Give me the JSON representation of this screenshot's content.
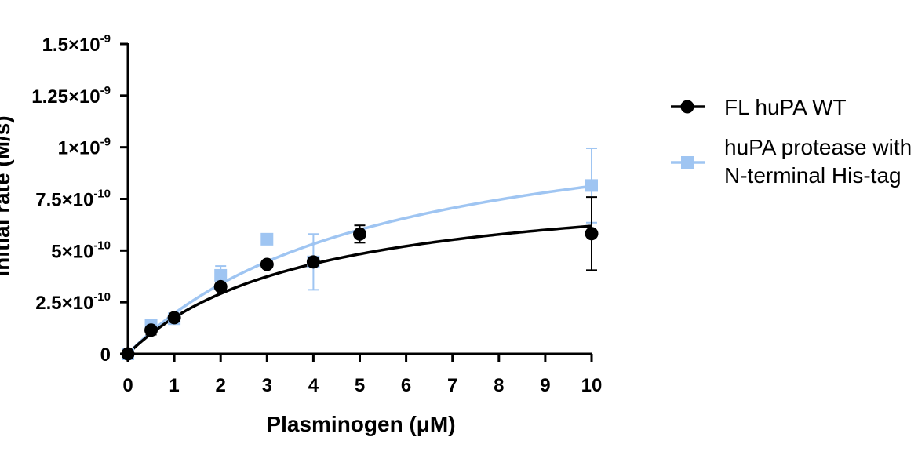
{
  "chart_data": {
    "type": "scatter",
    "xlabel": "Plasminogen (μM)",
    "ylabel": "Initial rate (M/s)",
    "xlim": [
      0,
      10
    ],
    "ylim": [
      0,
      1.5e-09
    ],
    "x_ticks": [
      {
        "value": 0,
        "label": "0"
      },
      {
        "value": 1,
        "label": "1"
      },
      {
        "value": 2,
        "label": "2"
      },
      {
        "value": 3,
        "label": "3"
      },
      {
        "value": 4,
        "label": "4"
      },
      {
        "value": 5,
        "label": "5"
      },
      {
        "value": 6,
        "label": "6"
      },
      {
        "value": 7,
        "label": "7"
      },
      {
        "value": 8,
        "label": "8"
      },
      {
        "value": 9,
        "label": "9"
      },
      {
        "value": 10,
        "label": "10"
      }
    ],
    "y_ticks": [
      {
        "value": 0,
        "mantissa": "0",
        "exp": ""
      },
      {
        "value": 2.5e-10,
        "mantissa": "2.5×10",
        "exp": "-10"
      },
      {
        "value": 5e-10,
        "mantissa": "5×10",
        "exp": "-10"
      },
      {
        "value": 7.5e-10,
        "mantissa": "7.5×10",
        "exp": "-10"
      },
      {
        "value": 1e-09,
        "mantissa": "1×10",
        "exp": "-9"
      },
      {
        "value": 1.25e-09,
        "mantissa": "1.25×10",
        "exp": "-9"
      },
      {
        "value": 1.5e-09,
        "mantissa": "1.5×10",
        "exp": "-9"
      }
    ],
    "grid": false,
    "legend_position": "right",
    "series": [
      {
        "name": "FL huPA WT",
        "color": "#000000",
        "marker": "circle",
        "points": [
          {
            "x": 0,
            "y": 0,
            "err": 0
          },
          {
            "x": 0.5,
            "y": 1.15e-10,
            "err": 2.2e-11
          },
          {
            "x": 1,
            "y": 1.75e-10,
            "err": 1.6e-11
          },
          {
            "x": 2,
            "y": 3.25e-10,
            "err": 1.2e-11
          },
          {
            "x": 3,
            "y": 4.33e-10,
            "err": 1e-11
          },
          {
            "x": 4,
            "y": 4.45e-10,
            "err": 1e-11
          },
          {
            "x": 5,
            "y": 5.8e-10,
            "err": 4.2e-11
          },
          {
            "x": 10,
            "y": 5.82e-10,
            "err": 1.77e-10
          }
        ],
        "fit": {
          "model": "michaelis-menten",
          "vmax": 8.6e-10,
          "km": 3.9
        }
      },
      {
        "name": "huPA protease with N-terminal His-tag",
        "legend_lines": [
          "huPA protease with",
          "N-terminal His-tag"
        ],
        "color": "#9fc5f2",
        "marker": "square",
        "points": [
          {
            "x": 0,
            "y": 0,
            "err": 0
          },
          {
            "x": 0.5,
            "y": 1.4e-10,
            "err": 0
          },
          {
            "x": 1,
            "y": 1.7e-10,
            "err": 1.5e-11
          },
          {
            "x": 2,
            "y": 3.8e-10,
            "err": 4.5e-11
          },
          {
            "x": 3,
            "y": 5.55e-10,
            "err": 0
          },
          {
            "x": 4,
            "y": 4.45e-10,
            "err": 1.35e-10
          },
          {
            "x": 10,
            "y": 8.15e-10,
            "err": 1.8e-10
          }
        ],
        "fit": {
          "model": "michaelis-menten",
          "vmax": 1.25e-09,
          "km": 5.4
        }
      }
    ]
  }
}
